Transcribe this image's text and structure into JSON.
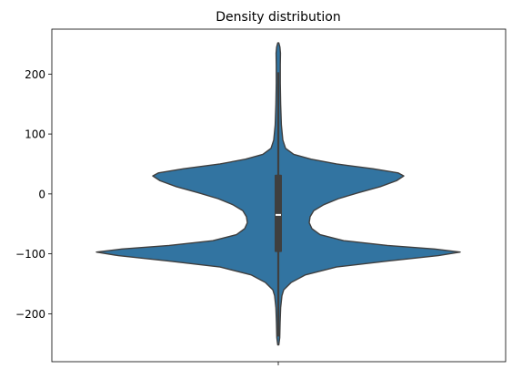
{
  "chart_data": {
    "type": "violin",
    "title": "Density distribution",
    "xlabel": "",
    "ylabel": "",
    "x_ticks": [
      ""
    ],
    "y_ticks": [
      -200,
      -100,
      0,
      100,
      200
    ],
    "ylim": [
      -280,
      275
    ],
    "grid": false,
    "legend": "none",
    "colors": {
      "body": "#3274a1",
      "outline": "#3f3f3f",
      "median": "#ffffff",
      "box": "#3f3f3f"
    },
    "violin": {
      "max_half_width": 1.0,
      "profile": [
        {
          "y": -252,
          "w": 0.003
        },
        {
          "y": -240,
          "w": 0.008
        },
        {
          "y": -215,
          "w": 0.01
        },
        {
          "y": -190,
          "w": 0.013
        },
        {
          "y": -170,
          "w": 0.02
        },
        {
          "y": -160,
          "w": 0.03
        },
        {
          "y": -148,
          "w": 0.07
        },
        {
          "y": -135,
          "w": 0.15
        },
        {
          "y": -122,
          "w": 0.32
        },
        {
          "y": -112,
          "w": 0.6
        },
        {
          "y": -103,
          "w": 0.88
        },
        {
          "y": -97,
          "w": 1.0
        },
        {
          "y": -92,
          "w": 0.86
        },
        {
          "y": -86,
          "w": 0.6
        },
        {
          "y": -78,
          "w": 0.36
        },
        {
          "y": -68,
          "w": 0.23
        },
        {
          "y": -58,
          "w": 0.185
        },
        {
          "y": -48,
          "w": 0.17
        },
        {
          "y": -38,
          "w": 0.175
        },
        {
          "y": -28,
          "w": 0.195
        },
        {
          "y": -18,
          "w": 0.25
        },
        {
          "y": -8,
          "w": 0.33
        },
        {
          "y": 2,
          "w": 0.44
        },
        {
          "y": 12,
          "w": 0.56
        },
        {
          "y": 22,
          "w": 0.65
        },
        {
          "y": 30,
          "w": 0.69
        },
        {
          "y": 35,
          "w": 0.66
        },
        {
          "y": 42,
          "w": 0.52
        },
        {
          "y": 50,
          "w": 0.32
        },
        {
          "y": 58,
          "w": 0.18
        },
        {
          "y": 66,
          "w": 0.085
        },
        {
          "y": 76,
          "w": 0.04
        },
        {
          "y": 90,
          "w": 0.025
        },
        {
          "y": 115,
          "w": 0.017
        },
        {
          "y": 150,
          "w": 0.013
        },
        {
          "y": 185,
          "w": 0.011
        },
        {
          "y": 215,
          "w": 0.011
        },
        {
          "y": 235,
          "w": 0.012
        },
        {
          "y": 245,
          "w": 0.009
        },
        {
          "y": 252,
          "w": 0.003
        }
      ],
      "whisker_low": -238,
      "whisker_high": 203,
      "q1": -97,
      "q3": 32,
      "median": -35
    }
  }
}
